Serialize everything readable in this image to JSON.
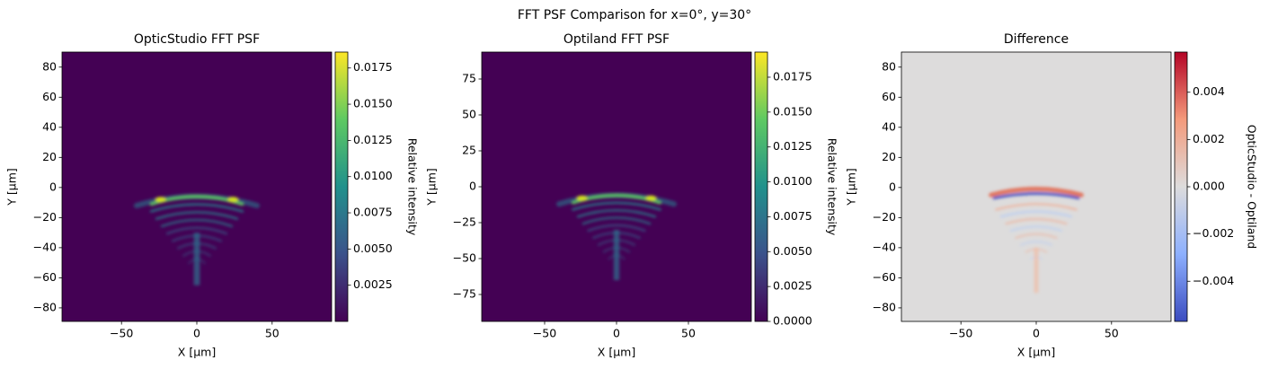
{
  "title": "FFT PSF Comparison for x=0°, y=30°",
  "chart_data": [
    {
      "type": "heatmap",
      "title": "OpticStudio FFT PSF",
      "xlabel": "X [µm]",
      "ylabel": "Y [µm]",
      "xlim": [
        -89.5,
        89.5
      ],
      "ylim": [
        -89,
        90
      ],
      "xticks": [
        {
          "value": -50,
          "label": "−50"
        },
        0,
        50
      ],
      "yticks": [
        {
          "value": -80,
          "label": "−80"
        },
        {
          "value": -60,
          "label": "−60"
        },
        {
          "value": -40,
          "label": "−40"
        },
        {
          "value": -20,
          "label": "−20"
        },
        0,
        20,
        40,
        60,
        80
      ],
      "colormap": "viridis",
      "colorbar": {
        "label": "Relative intensity",
        "lim": [
          0,
          0.0186
        ],
        "ticks": [
          0.0025,
          {
            "value": 0.005,
            "label": "0.0050"
          },
          0.0075,
          {
            "value": 0.01,
            "label": "0.0100"
          },
          0.0125,
          {
            "value": 0.015,
            "label": "0.0150"
          },
          0.0175
        ]
      }
    },
    {
      "type": "heatmap",
      "title": "Optiland FFT PSF",
      "xlabel": "X [µm]",
      "ylabel": "Y [µm]",
      "xlim": [
        -93.75,
        93.75
      ],
      "ylim": [
        -93.75,
        93.75
      ],
      "xticks": [
        {
          "value": -50,
          "label": "−50"
        },
        0,
        50
      ],
      "yticks": [
        {
          "value": -75,
          "label": "−75"
        },
        {
          "value": -50,
          "label": "−50"
        },
        {
          "value": -25,
          "label": "−25"
        },
        0,
        25,
        50,
        75
      ],
      "colormap": "viridis",
      "colorbar": {
        "label": "Relative intensity",
        "lim": [
          0,
          0.0193
        ],
        "ticks": [
          {
            "value": 0,
            "label": "0.0000"
          },
          0.0025,
          {
            "value": 0.005,
            "label": "0.0050"
          },
          0.0075,
          {
            "value": 0.01,
            "label": "0.0100"
          },
          0.0125,
          {
            "value": 0.015,
            "label": "0.0150"
          },
          0.0175
        ]
      }
    },
    {
      "type": "heatmap",
      "title": "Difference",
      "xlabel": "X [µm]",
      "ylabel": "Y [µm]",
      "xlim": [
        -89.5,
        89.5
      ],
      "ylim": [
        -89,
        90
      ],
      "xticks": [
        {
          "value": -50,
          "label": "−50"
        },
        0,
        50
      ],
      "yticks": [
        {
          "value": -80,
          "label": "−80"
        },
        {
          "value": -60,
          "label": "−60"
        },
        {
          "value": -40,
          "label": "−40"
        },
        {
          "value": -20,
          "label": "−20"
        },
        0,
        20,
        40,
        60,
        80
      ],
      "colormap": "coolwarm",
      "colorbar": {
        "label": "OpticStudio - Optiland",
        "lim": [
          -0.0057,
          0.0057
        ],
        "ticks": [
          {
            "value": -0.004,
            "label": "−0.004"
          },
          {
            "value": -0.002,
            "label": "−0.002"
          },
          {
            "value": 0,
            "label": "0.000"
          },
          0.002,
          0.004
        ]
      }
    }
  ]
}
